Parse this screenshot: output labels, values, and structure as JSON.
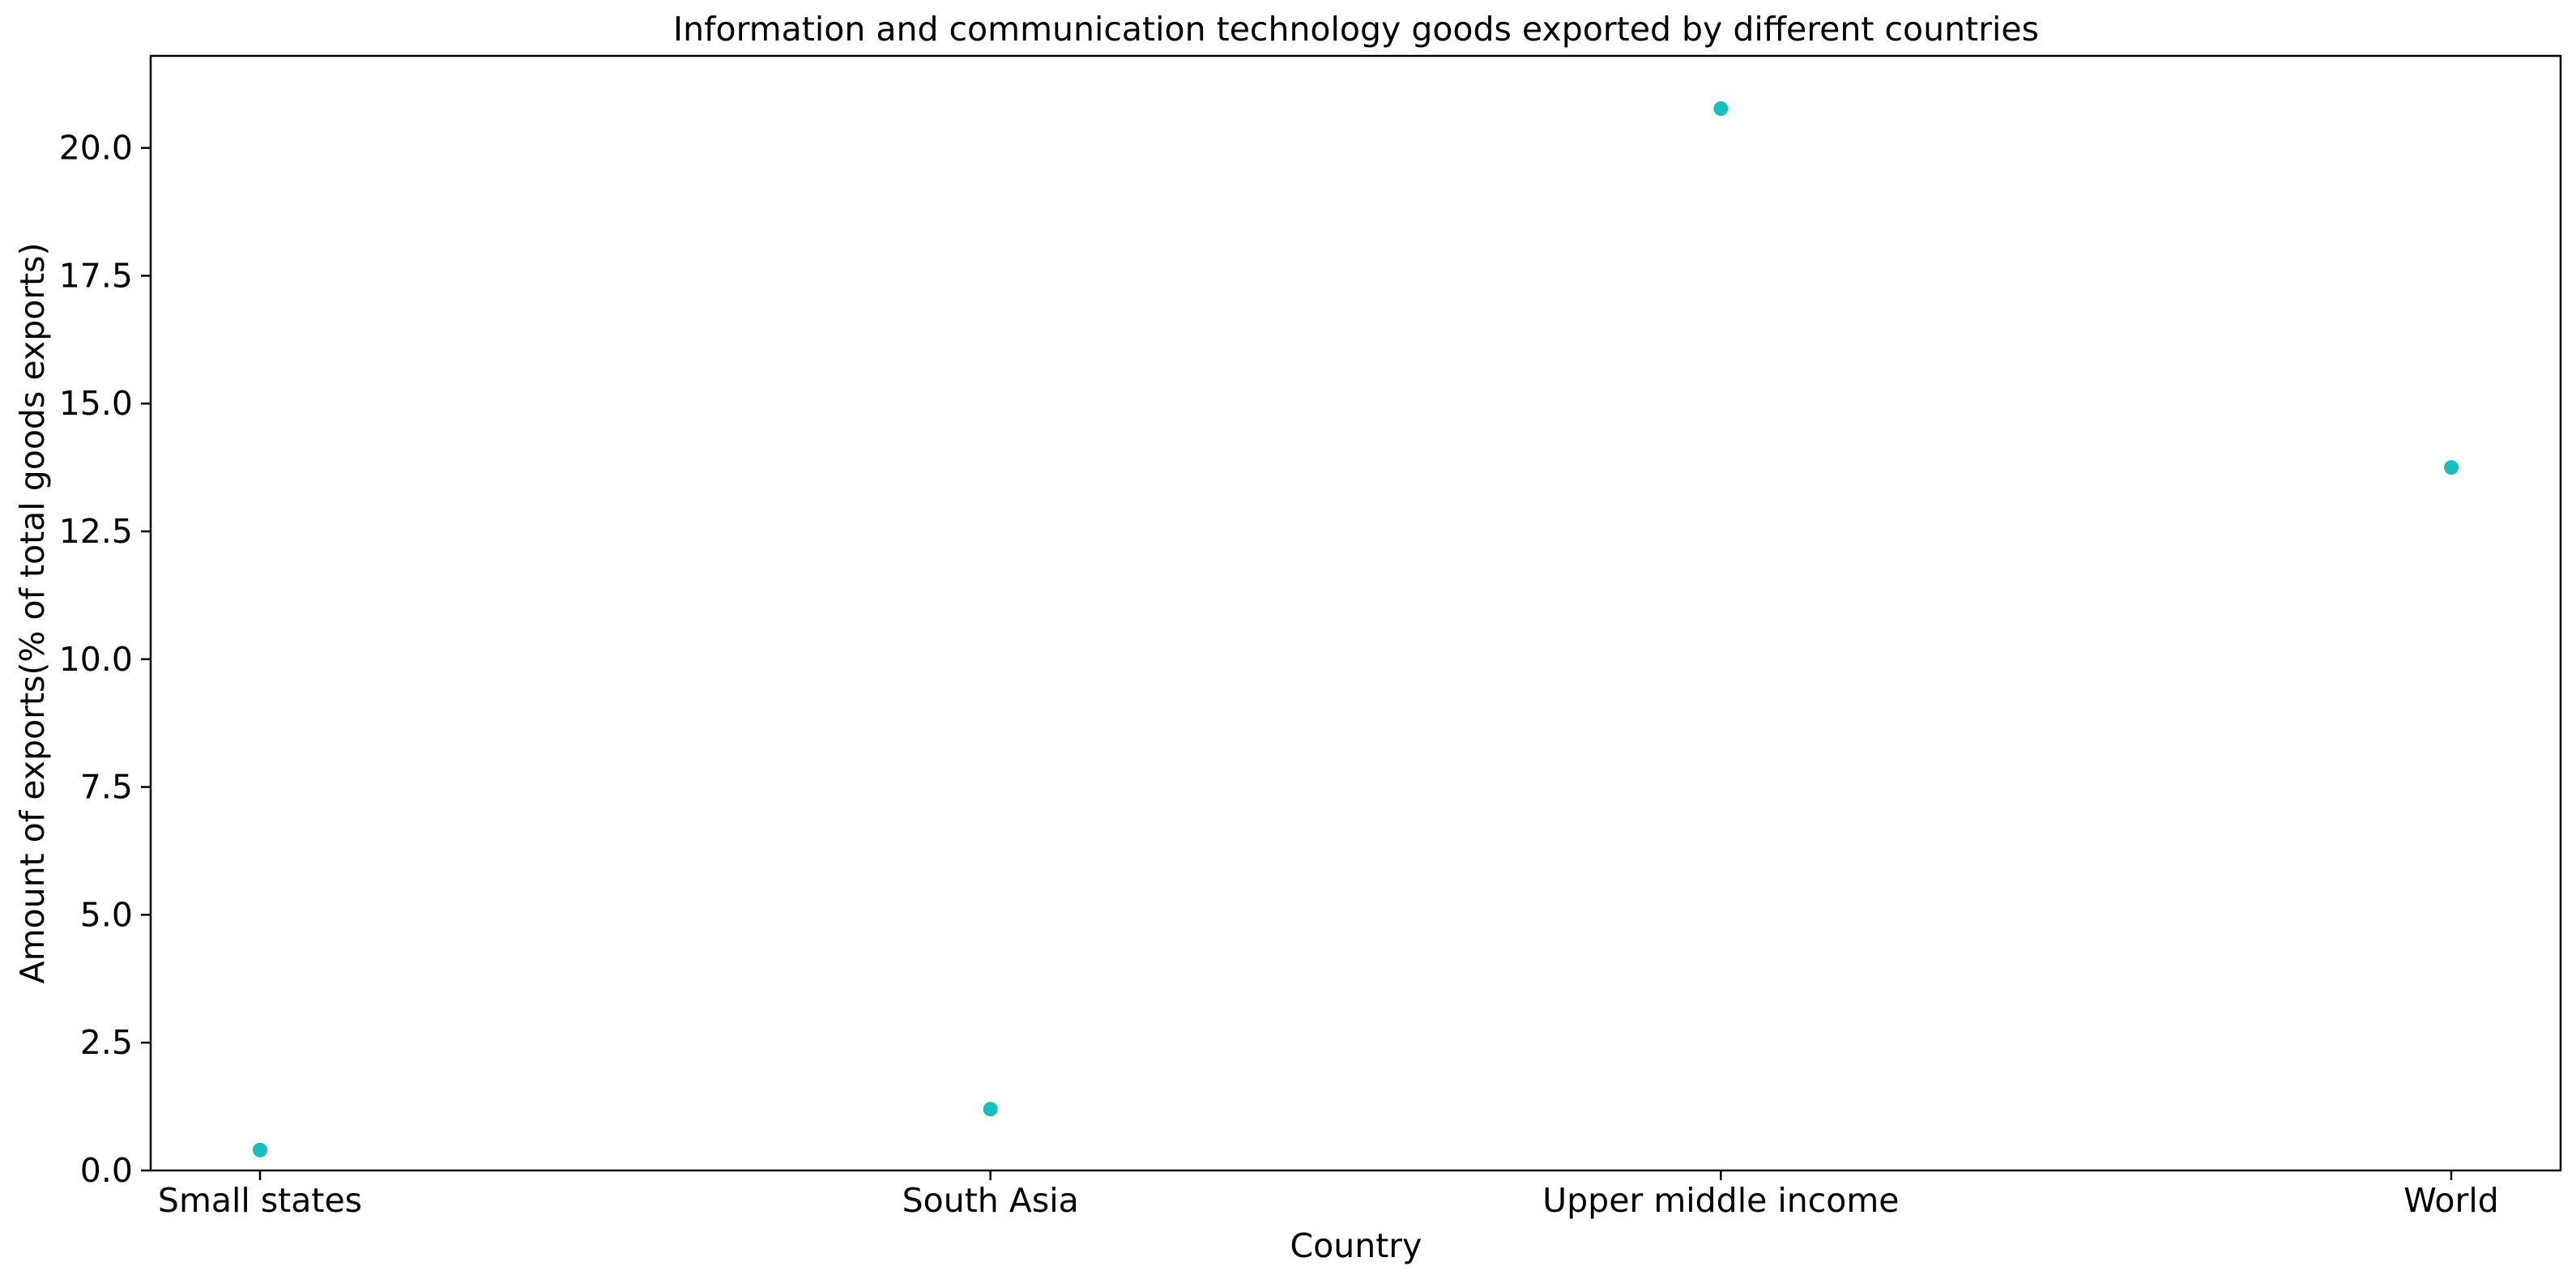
{
  "chart_data": {
    "type": "scatter",
    "title": "Information and communication technology goods exported by different countries",
    "xlabel": "Country",
    "ylabel": "Amount of exports(% of total goods exports)",
    "categories": [
      "Small states",
      "South Asia",
      "Upper middle income",
      "World"
    ],
    "values": [
      0.4,
      1.2,
      20.77,
      13.75
    ],
    "ylim": [
      0,
      21.8
    ],
    "yticks": [
      0.0,
      2.5,
      5.0,
      7.5,
      10.0,
      12.5,
      15.0,
      17.5,
      20.0
    ],
    "ytick_labels": [
      "0.0",
      "2.5",
      "5.0",
      "7.5",
      "10.0",
      "12.5",
      "15.0",
      "17.5",
      "20.0"
    ],
    "grid": false,
    "marker_color": "#17bfbf"
  }
}
